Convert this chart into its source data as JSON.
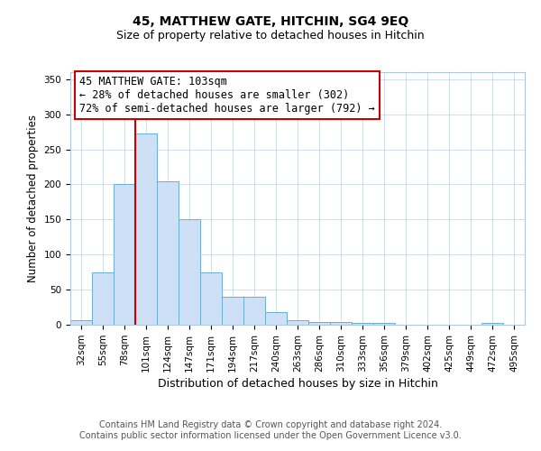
{
  "title": "45, MATTHEW GATE, HITCHIN, SG4 9EQ",
  "subtitle": "Size of property relative to detached houses in Hitchin",
  "xlabel": "Distribution of detached houses by size in Hitchin",
  "ylabel": "Number of detached properties",
  "bin_labels": [
    "32sqm",
    "55sqm",
    "78sqm",
    "101sqm",
    "124sqm",
    "147sqm",
    "171sqm",
    "194sqm",
    "217sqm",
    "240sqm",
    "263sqm",
    "286sqm",
    "310sqm",
    "333sqm",
    "356sqm",
    "379sqm",
    "402sqm",
    "425sqm",
    "449sqm",
    "472sqm",
    "495sqm"
  ],
  "bar_heights": [
    7,
    75,
    201,
    273,
    204,
    150,
    75,
    40,
    40,
    18,
    7,
    4,
    4,
    3,
    2,
    0,
    0,
    0,
    0,
    2,
    0
  ],
  "bar_color": "#cde0f5",
  "bar_edge_color": "#6aaed6",
  "vline_color": "#cc0000",
  "ylim": [
    0,
    360
  ],
  "yticks": [
    0,
    50,
    100,
    150,
    200,
    250,
    300,
    350
  ],
  "annotation_title": "45 MATTHEW GATE: 103sqm",
  "annotation_line1": "← 28% of detached houses are smaller (302)",
  "annotation_line2": "72% of semi-detached houses are larger (792) →",
  "annotation_box_color": "#ffffff",
  "annotation_box_edge_color": "#cc0000",
  "footer_line1": "Contains HM Land Registry data © Crown copyright and database right 2024.",
  "footer_line2": "Contains public sector information licensed under the Open Government Licence v3.0.",
  "title_fontsize": 10,
  "subtitle_fontsize": 9,
  "ylabel_fontsize": 8.5,
  "xlabel_fontsize": 9,
  "tick_fontsize": 7.5,
  "footer_fontsize": 7,
  "annot_fontsize": 8.5
}
